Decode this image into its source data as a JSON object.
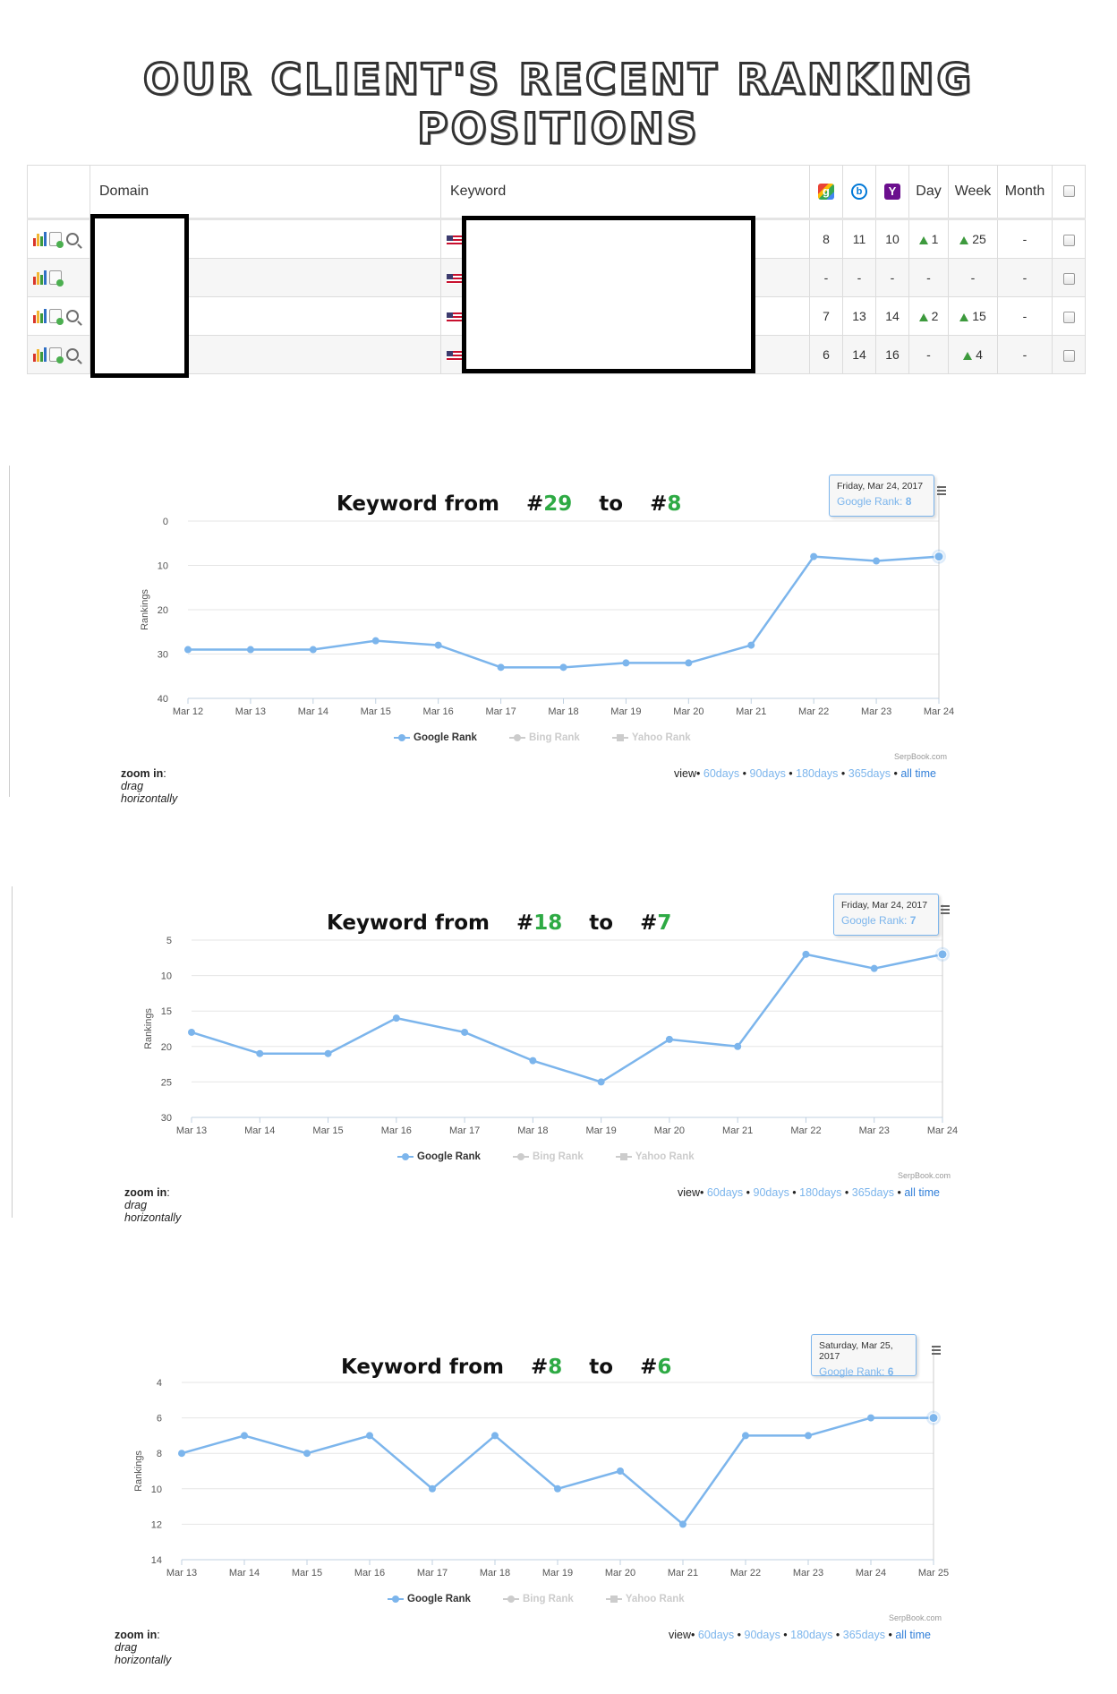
{
  "page_title": "OUR CLIENT'S RECENT RANKING POSITIONS",
  "table": {
    "headers": {
      "domain": "Domain",
      "keyword": "Keyword",
      "day": "Day",
      "week": "Week",
      "month": "Month"
    },
    "engine_icons": [
      "google-icon",
      "bing-icon",
      "yahoo-icon"
    ],
    "rows": [
      {
        "google": "8",
        "bing": "11",
        "yahoo": "10",
        "day": "1",
        "day_up": true,
        "week": "25",
        "week_up": true,
        "month": "-",
        "has_search": true
      },
      {
        "google": "-",
        "bing": "-",
        "yahoo": "-",
        "day": "-",
        "day_up": false,
        "week": "-",
        "week_up": false,
        "month": "-",
        "has_search": false
      },
      {
        "google": "7",
        "bing": "13",
        "yahoo": "14",
        "day": "2",
        "day_up": true,
        "week": "15",
        "week_up": true,
        "month": "-",
        "has_search": true
      },
      {
        "google": "6",
        "bing": "14",
        "yahoo": "16",
        "day": "-",
        "day_up": false,
        "week": "4",
        "week_up": true,
        "month": "-",
        "has_search": true
      }
    ]
  },
  "chart_data": [
    {
      "type": "line",
      "title": {
        "prefix": "Keyword from",
        "from": "29",
        "to_word": "to",
        "to": "8"
      },
      "ylabel": "Rankings",
      "y_reversed": true,
      "ylim": [
        0,
        40
      ],
      "yticks": [
        0,
        10,
        20,
        30,
        40
      ],
      "categories": [
        "Mar 12",
        "Mar 13",
        "Mar 14",
        "Mar 15",
        "Mar 16",
        "Mar 17",
        "Mar 18",
        "Mar 19",
        "Mar 20",
        "Mar 21",
        "Mar 22",
        "Mar 23",
        "Mar 24"
      ],
      "series": [
        {
          "name": "Google Rank",
          "values": [
            29,
            29,
            29,
            27,
            28,
            33,
            33,
            32,
            32,
            28,
            8,
            9,
            8
          ]
        }
      ],
      "tooltip": {
        "date": "Friday, Mar 24, 2017",
        "label": "Google Rank:",
        "value": "8"
      },
      "legend": [
        "Google Rank",
        "Bing Rank",
        "Yahoo Rank"
      ],
      "credit": "SerpBook.com",
      "zoom": {
        "label": "zoom in",
        "hint": "drag horizontally"
      },
      "view": {
        "label": "view",
        "links": [
          "60days",
          "90days",
          "180days",
          "365days",
          "all time"
        ]
      },
      "color": "#7cb5ec"
    },
    {
      "type": "line",
      "title": {
        "prefix": "Keyword from",
        "from": "18",
        "to_word": "to",
        "to": "7"
      },
      "ylabel": "Rankings",
      "y_reversed": true,
      "ylim": [
        5,
        30
      ],
      "yticks": [
        5,
        10,
        15,
        20,
        25,
        30
      ],
      "categories": [
        "Mar 13",
        "Mar 14",
        "Mar 15",
        "Mar 16",
        "Mar 17",
        "Mar 18",
        "Mar 19",
        "Mar 20",
        "Mar 21",
        "Mar 22",
        "Mar 23",
        "Mar 24"
      ],
      "series": [
        {
          "name": "Google Rank",
          "values": [
            18,
            21,
            21,
            16,
            18,
            22,
            25,
            19,
            20,
            7,
            9,
            7
          ]
        }
      ],
      "tooltip": {
        "date": "Friday, Mar 24, 2017",
        "label": "Google Rank:",
        "value": "7"
      },
      "legend": [
        "Google Rank",
        "Bing Rank",
        "Yahoo Rank"
      ],
      "credit": "SerpBook.com",
      "zoom": {
        "label": "zoom in",
        "hint": "drag horizontally"
      },
      "view": {
        "label": "view",
        "links": [
          "60days",
          "90days",
          "180days",
          "365days",
          "all time"
        ]
      },
      "color": "#7cb5ec"
    },
    {
      "type": "line",
      "title": {
        "prefix": "Keyword from",
        "from": "8",
        "to_word": "to",
        "to": "6"
      },
      "ylabel": "Rankings",
      "y_reversed": true,
      "ylim": [
        4,
        14
      ],
      "yticks": [
        4,
        6,
        8,
        10,
        12,
        14
      ],
      "categories": [
        "Mar 13",
        "Mar 14",
        "Mar 15",
        "Mar 16",
        "Mar 17",
        "Mar 18",
        "Mar 19",
        "Mar 20",
        "Mar 21",
        "Mar 22",
        "Mar 23",
        "Mar 24",
        "Mar 25"
      ],
      "series": [
        {
          "name": "Google Rank",
          "values": [
            8,
            7,
            8,
            7,
            10,
            7,
            10,
            9,
            12,
            7,
            7,
            6,
            6
          ]
        }
      ],
      "tooltip": {
        "date": "Saturday, Mar 25, 2017",
        "label": "Google Rank:",
        "value": "6"
      },
      "legend": [
        "Google Rank",
        "Bing Rank",
        "Yahoo Rank"
      ],
      "credit": "SerpBook.com",
      "zoom": {
        "label": "zoom in",
        "hint": "drag horizontally"
      },
      "view": {
        "label": "view",
        "links": [
          "60days",
          "90days",
          "180days",
          "365days",
          "all time"
        ]
      },
      "color": "#7cb5ec"
    }
  ]
}
